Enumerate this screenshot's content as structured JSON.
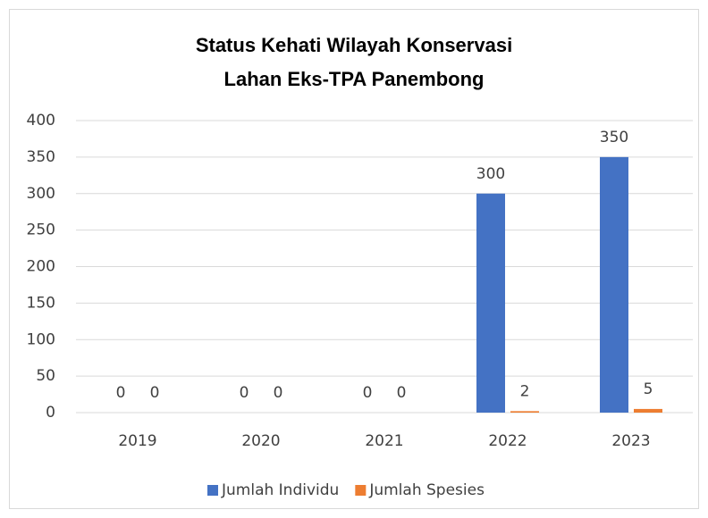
{
  "chart_data": {
    "type": "bar",
    "title": [
      "Status Kehati Wilayah Konservasi",
      "Lahan Eks-TPA Panembong"
    ],
    "categories": [
      "2019",
      "2020",
      "2021",
      "2022",
      "2023"
    ],
    "series": [
      {
        "name": "Jumlah Individu",
        "color": "#4472c4",
        "values": [
          0,
          0,
          0,
          300,
          350
        ]
      },
      {
        "name": "Jumlah Spesies",
        "color": "#ed7d31",
        "values": [
          0,
          0,
          0,
          2,
          5
        ]
      }
    ],
    "ylim": [
      0,
      400
    ],
    "yticks": [
      0,
      50,
      100,
      150,
      200,
      250,
      300,
      350,
      400
    ],
    "grid": true,
    "legend": "bottom"
  }
}
